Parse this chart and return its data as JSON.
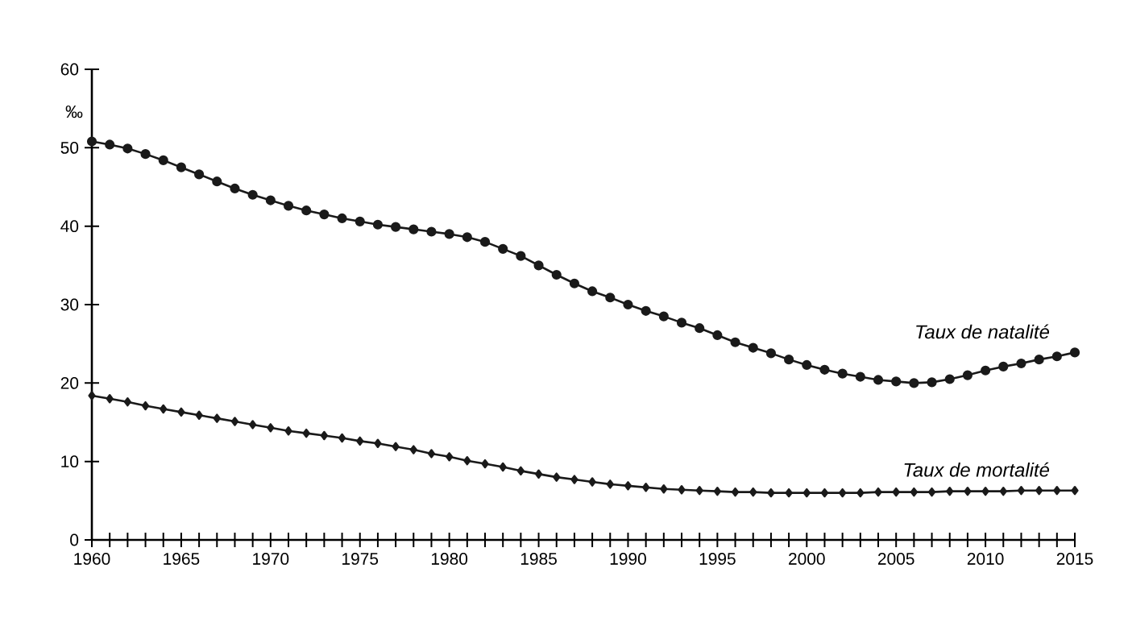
{
  "chart_data": {
    "type": "line",
    "ylabel": "‰",
    "x": [
      1960,
      1961,
      1962,
      1963,
      1964,
      1965,
      1966,
      1967,
      1968,
      1969,
      1970,
      1971,
      1972,
      1973,
      1974,
      1975,
      1976,
      1977,
      1978,
      1979,
      1980,
      1981,
      1982,
      1983,
      1984,
      1985,
      1986,
      1987,
      1988,
      1989,
      1990,
      1991,
      1992,
      1993,
      1994,
      1995,
      1996,
      1997,
      1998,
      1999,
      2000,
      2001,
      2002,
      2003,
      2004,
      2005,
      2006,
      2007,
      2008,
      2009,
      2010,
      2011,
      2012,
      2013,
      2014,
      2015
    ],
    "series": [
      {
        "name": "Taux de natalité",
        "color": "#1a1a1a",
        "marker": "circle",
        "values": [
          50.8,
          50.4,
          49.9,
          49.2,
          48.4,
          47.5,
          46.6,
          45.7,
          44.8,
          44.0,
          43.3,
          42.6,
          42.0,
          41.5,
          41.0,
          40.6,
          40.2,
          39.9,
          39.6,
          39.3,
          39.0,
          38.6,
          38.0,
          37.1,
          36.2,
          35.0,
          33.8,
          32.7,
          31.7,
          30.9,
          30.0,
          29.2,
          28.5,
          27.7,
          27.0,
          26.1,
          25.2,
          24.5,
          23.8,
          23.0,
          22.3,
          21.7,
          21.2,
          20.8,
          20.4,
          20.2,
          20.0,
          20.1,
          20.5,
          21.0,
          21.6,
          22.1,
          22.5,
          23.0,
          23.4,
          23.9
        ]
      },
      {
        "name": "Taux de mortalité",
        "color": "#1a1a1a",
        "marker": "diamond",
        "values": [
          18.4,
          18.0,
          17.6,
          17.1,
          16.7,
          16.3,
          15.9,
          15.5,
          15.1,
          14.7,
          14.3,
          13.9,
          13.6,
          13.3,
          13.0,
          12.6,
          12.3,
          11.9,
          11.5,
          11.0,
          10.6,
          10.1,
          9.7,
          9.3,
          8.8,
          8.4,
          8.0,
          7.7,
          7.4,
          7.1,
          6.9,
          6.7,
          6.5,
          6.4,
          6.3,
          6.2,
          6.1,
          6.1,
          6.0,
          6.0,
          6.0,
          6.0,
          6.0,
          6.0,
          6.1,
          6.1,
          6.1,
          6.1,
          6.2,
          6.2,
          6.2,
          6.2,
          6.3,
          6.3,
          6.3,
          6.3
        ]
      }
    ],
    "xlim": [
      1960,
      2015
    ],
    "ylim": [
      0,
      60
    ],
    "xticks": [
      1960,
      {
        "value": 1961,
        "label": null
      },
      {
        "value": 1962,
        "label": null
      },
      {
        "value": 1963,
        "label": null
      },
      {
        "value": 1964,
        "label": null
      },
      1965,
      {
        "value": 1966,
        "label": null
      },
      {
        "value": 1967,
        "label": null
      },
      {
        "value": 1968,
        "label": null
      },
      {
        "value": 1969,
        "label": null
      },
      1970,
      {
        "value": 1971,
        "label": null
      },
      {
        "value": 1972,
        "label": null
      },
      {
        "value": 1973,
        "label": null
      },
      {
        "value": 1974,
        "label": null
      },
      1975,
      {
        "value": 1976,
        "label": null
      },
      {
        "value": 1977,
        "label": null
      },
      {
        "value": 1978,
        "label": null
      },
      {
        "value": 1979,
        "label": null
      },
      1980,
      {
        "value": 1981,
        "label": null
      },
      {
        "value": 1982,
        "label": null
      },
      {
        "value": 1983,
        "label": null
      },
      {
        "value": 1984,
        "label": null
      },
      1985,
      {
        "value": 1986,
        "label": null
      },
      {
        "value": 1987,
        "label": null
      },
      {
        "value": 1988,
        "label": null
      },
      {
        "value": 1989,
        "label": null
      },
      1990,
      {
        "value": 1991,
        "label": null
      },
      {
        "value": 1992,
        "label": null
      },
      {
        "value": 1993,
        "label": null
      },
      {
        "value": 1994,
        "label": null
      },
      1995,
      {
        "value": 1996,
        "label": null
      },
      {
        "value": 1997,
        "label": null
      },
      {
        "value": 1998,
        "label": null
      },
      {
        "value": 1999,
        "label": null
      },
      2000,
      {
        "value": 2001,
        "label": null
      },
      {
        "value": 2002,
        "label": null
      },
      {
        "value": 2003,
        "label": null
      },
      {
        "value": 2004,
        "label": null
      },
      2005,
      {
        "value": 2006,
        "label": null
      },
      {
        "value": 2007,
        "label": null
      },
      {
        "value": 2008,
        "label": null
      },
      {
        "value": 2009,
        "label": null
      },
      2010,
      {
        "value": 2011,
        "label": null
      },
      {
        "value": 2012,
        "label": null
      },
      {
        "value": 2013,
        "label": null
      },
      {
        "value": 2014,
        "label": null
      },
      2015
    ],
    "yticks": [
      0,
      10,
      20,
      30,
      40,
      50,
      60
    ],
    "grid": false,
    "line_style": "solid"
  }
}
